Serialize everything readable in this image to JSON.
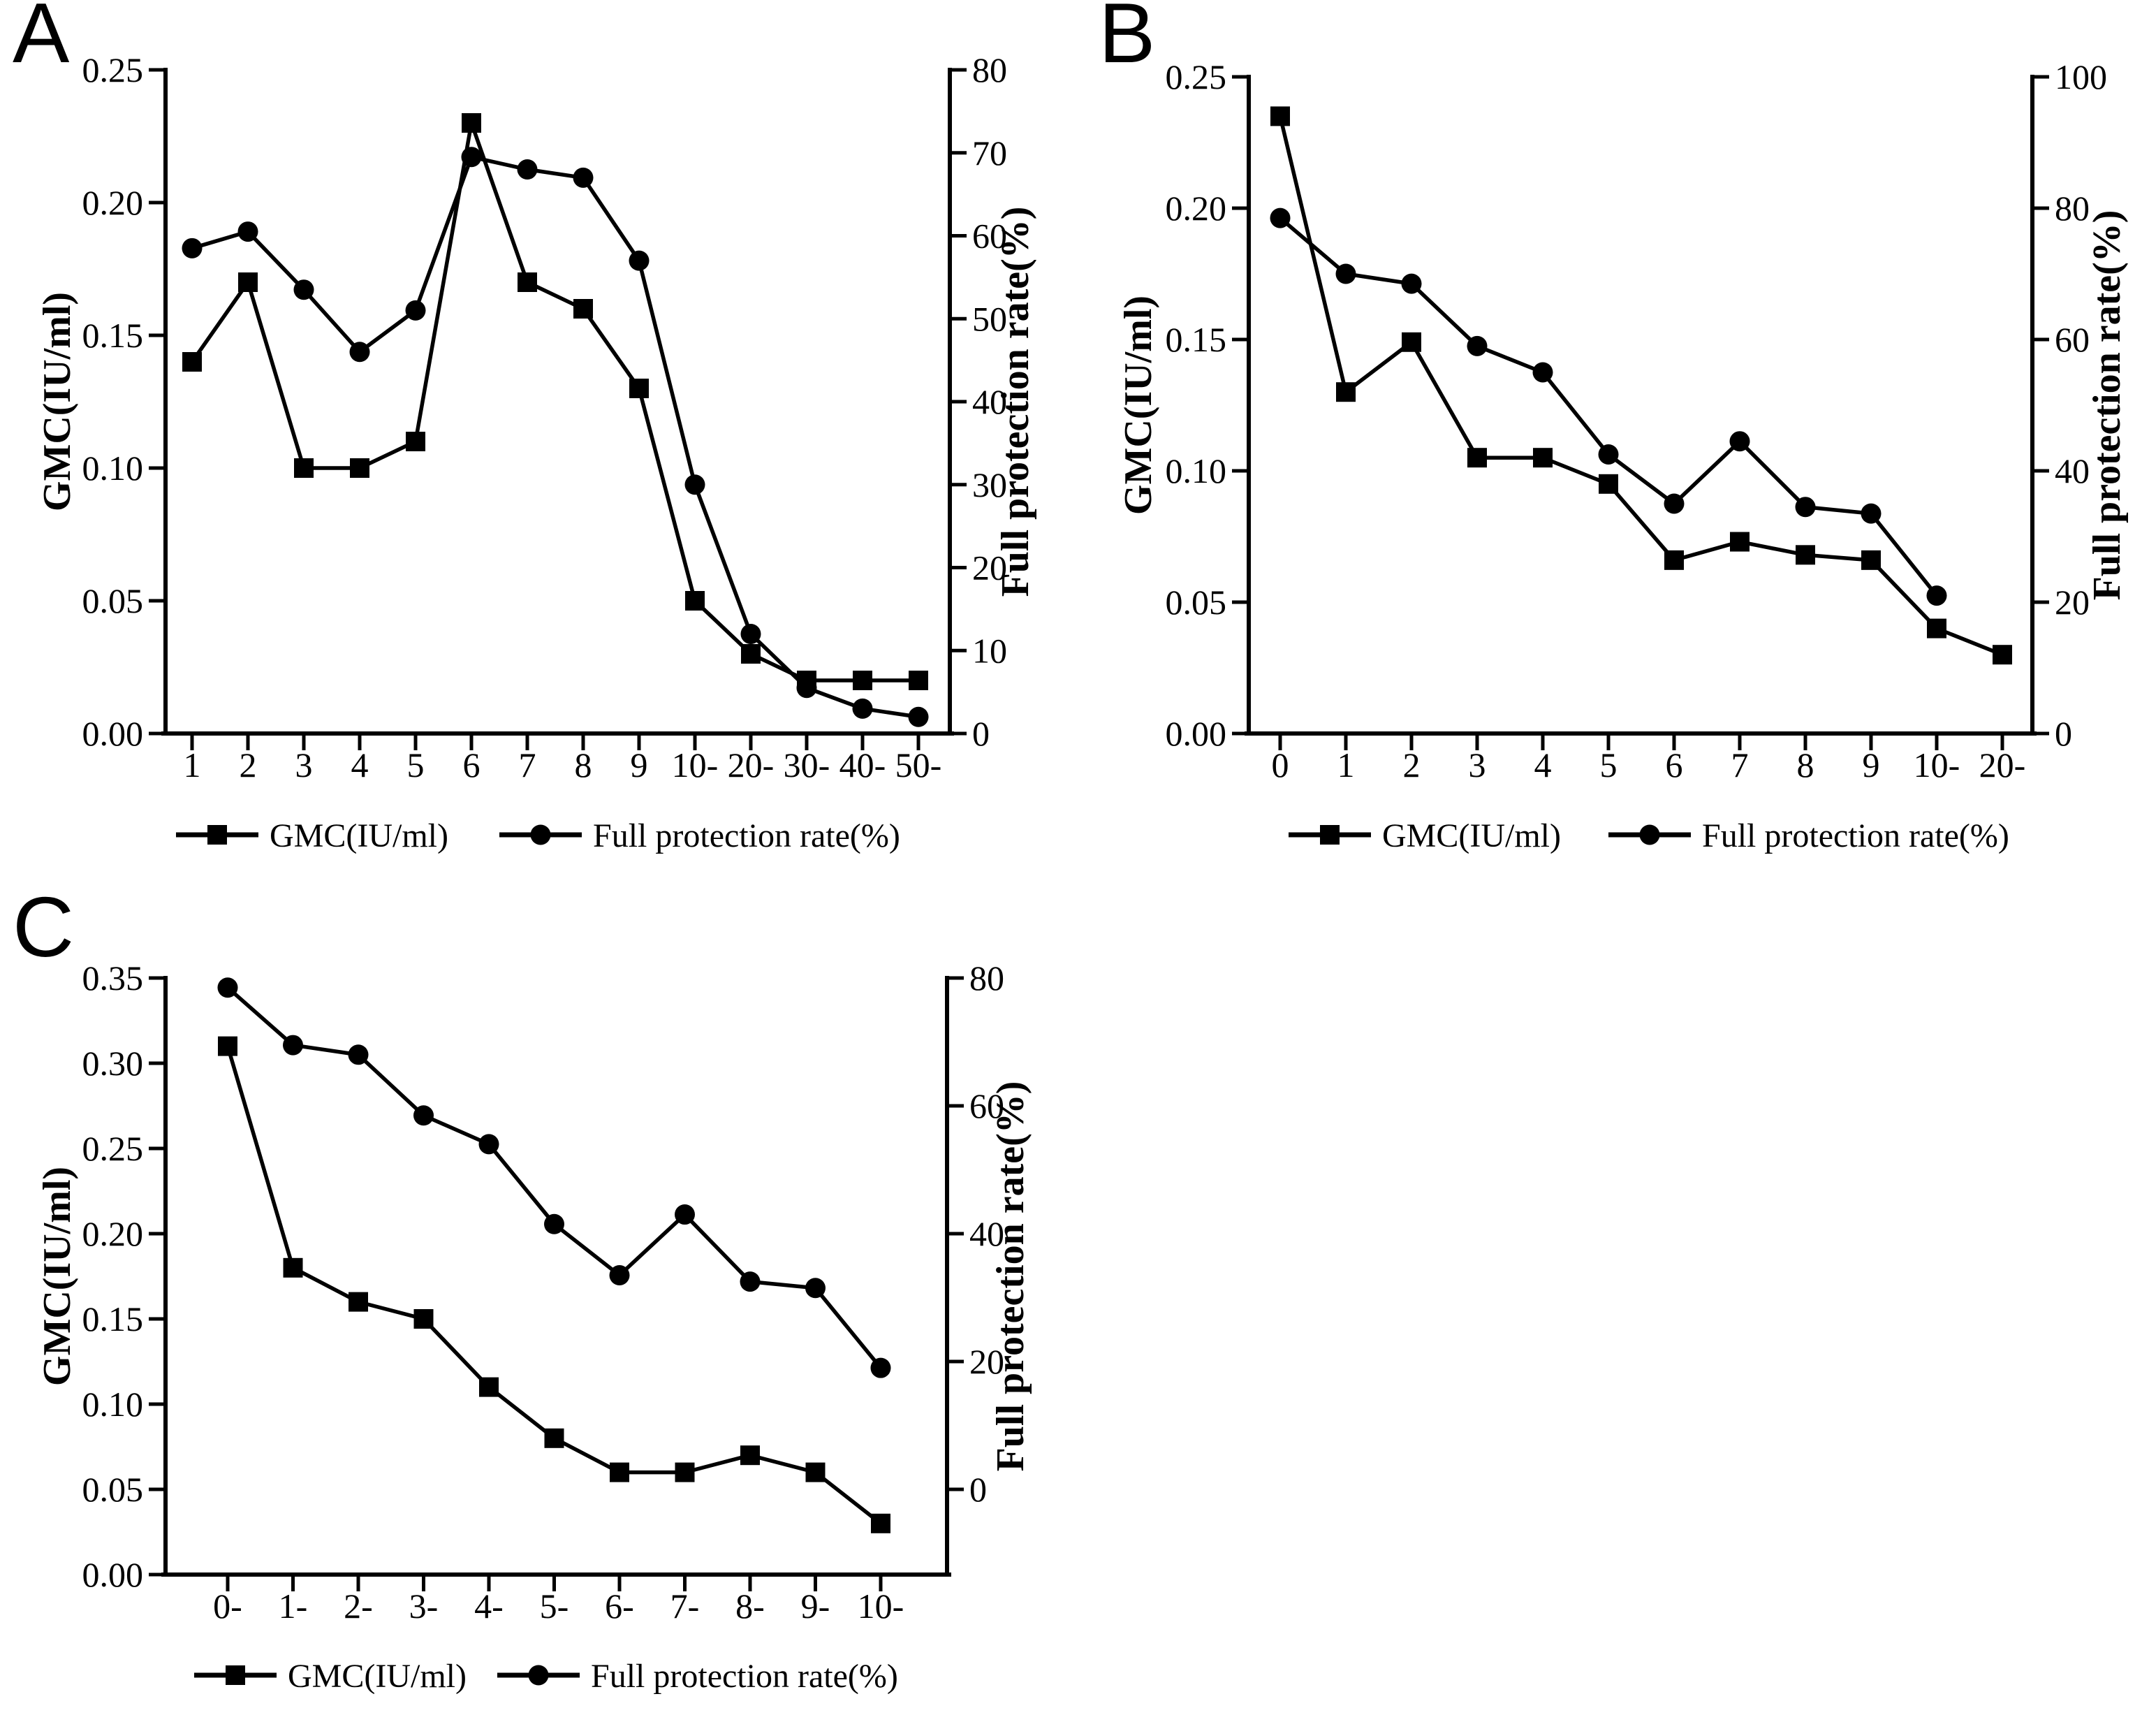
{
  "page": {
    "background": "#ffffff",
    "ink": "#000000"
  },
  "chart_data": [
    {
      "panel_label": "A",
      "type": "line",
      "categories": [
        "1",
        "2",
        "3",
        "4",
        "5",
        "6",
        "7",
        "8",
        "9",
        "10-",
        "20-",
        "30-",
        "40-",
        "50-"
      ],
      "series": [
        {
          "name": "GMC(IU/ml)",
          "axis": "left",
          "marker": "square",
          "values": [
            0.14,
            0.17,
            0.1,
            0.1,
            0.11,
            0.23,
            0.17,
            0.16,
            0.13,
            0.05,
            0.03,
            0.02,
            0.02,
            0.02
          ]
        },
        {
          "name": "Full protection rate(%)",
          "axis": "right",
          "marker": "circle",
          "values": [
            58.5,
            60.5,
            53.5,
            46,
            51,
            69.5,
            68,
            67,
            57,
            30,
            12,
            5.5,
            3,
            2
          ]
        }
      ],
      "left_axis": {
        "label": "GMC(IU/ml)",
        "min": 0,
        "max": 0.25,
        "ticks": [
          "0.00",
          "0.05",
          "0.10",
          "0.15",
          "0.20",
          "0.25"
        ]
      },
      "right_axis": {
        "label": "Full protection rate(%)",
        "min": 0,
        "max": 80,
        "ticks": [
          "0",
          "10",
          "20",
          "30",
          "40",
          "50",
          "60",
          "70",
          "80"
        ]
      },
      "legend": [
        "GMC(IU/ml)",
        "Full protection rate(%)"
      ],
      "legend_position": "bottom",
      "grid": false
    },
    {
      "panel_label": "B",
      "type": "line",
      "categories": [
        "0",
        "1",
        "2",
        "3",
        "4",
        "5",
        "6",
        "7",
        "8",
        "9",
        "10-",
        "20-"
      ],
      "series": [
        {
          "name": "GMC(IU/ml)",
          "axis": "left",
          "marker": "square",
          "values": [
            0.235,
            0.13,
            0.149,
            0.105,
            0.105,
            0.095,
            0.066,
            0.073,
            0.068,
            0.066,
            0.04,
            0.03
          ]
        },
        {
          "name": "Full protection rate(%)",
          "axis": "right",
          "marker": "circle",
          "values": [
            78.5,
            70,
            68.5,
            59,
            55,
            42.5,
            35,
            44.5,
            34.5,
            33.5,
            21,
            null
          ]
        }
      ],
      "left_axis": {
        "label": "GMC(IU/ml)",
        "min": 0,
        "max": 0.25,
        "ticks": [
          "0.00",
          "0.05",
          "0.10",
          "0.15",
          "0.20",
          "0.25"
        ]
      },
      "right_axis": {
        "label": "Full protection rate(%)",
        "min": 0,
        "max": 100,
        "ticks": [
          "0",
          "20",
          "40",
          "60",
          "80",
          "100"
        ]
      },
      "legend": [
        "GMC(IU/ml)",
        "Full protection rate(%)"
      ],
      "legend_position": "bottom",
      "grid": false
    },
    {
      "panel_label": "C",
      "type": "line",
      "categories": [
        "0-",
        "1-",
        "2-",
        "3-",
        "4-",
        "5-",
        "6-",
        "7-",
        "8-",
        "9-",
        "10-"
      ],
      "series": [
        {
          "name": "GMC(IU/ml)",
          "axis": "left",
          "marker": "square",
          "values": [
            0.31,
            0.18,
            0.16,
            0.15,
            0.11,
            0.08,
            0.06,
            0.06,
            0.07,
            0.06,
            0.03
          ]
        },
        {
          "name": "Full protection rate(%)",
          "axis": "right",
          "marker": "circle",
          "values": [
            78.5,
            69.5,
            68,
            58.5,
            54,
            41.5,
            33.5,
            43,
            32.5,
            31.5,
            19
          ]
        }
      ],
      "left_axis": {
        "label": "GMC(IU/ml)",
        "min": 0,
        "max": 0.35,
        "ticks": [
          "0.00",
          "0.05",
          "0.10",
          "0.15",
          "0.20",
          "0.25",
          "0.30",
          "0.35"
        ]
      },
      "right_axis": {
        "label": "Full protection rate(%)",
        "min": -13.33,
        "max": 80,
        "ticks": [
          "0",
          "20",
          "40",
          "60",
          "80"
        ]
      },
      "legend": [
        "GMC(IU/ml)",
        "Full protection rate(%)"
      ],
      "legend_position": "bottom",
      "grid": false
    }
  ]
}
